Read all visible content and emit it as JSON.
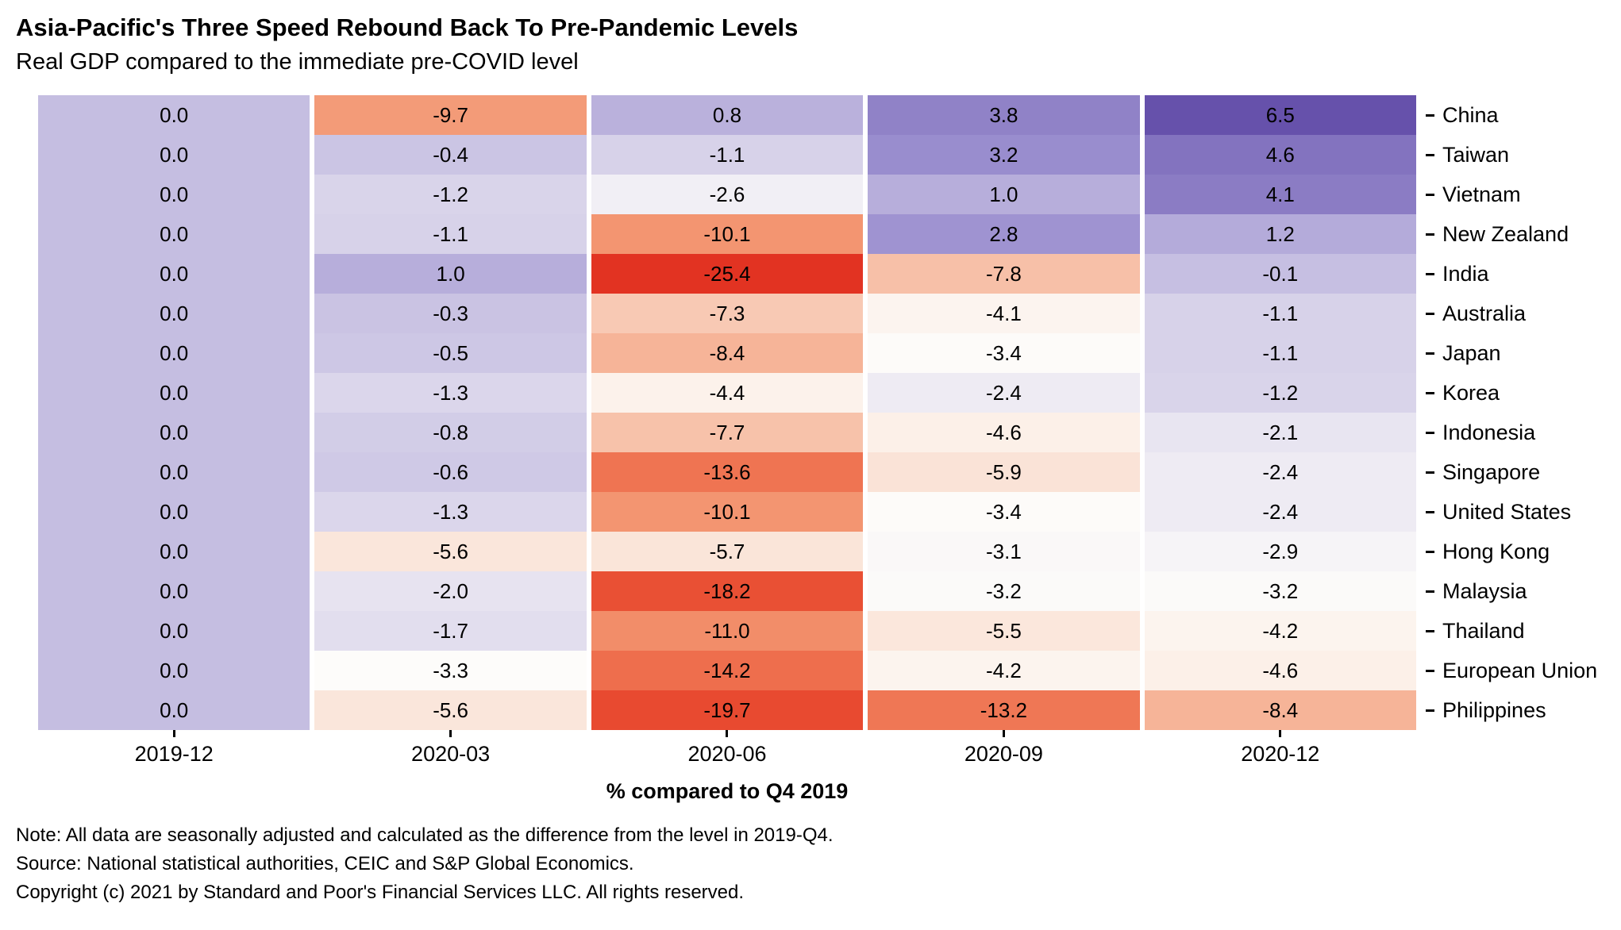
{
  "header": {
    "title": "Asia-Pacific's Three Speed Rebound Back To Pre-Pandemic Levels",
    "subtitle": "Real GDP compared to the immediate pre-COVID level"
  },
  "chart_data": {
    "type": "heatmap",
    "x_categories": [
      "2019-12",
      "2020-03",
      "2020-06",
      "2020-09",
      "2020-12"
    ],
    "xlabel": "% compared to Q4 2019",
    "rows": [
      {
        "label": "China",
        "values": [
          0.0,
          -9.7,
          0.8,
          3.8,
          6.5
        ]
      },
      {
        "label": "Taiwan",
        "values": [
          0.0,
          -0.4,
          -1.1,
          3.2,
          4.6
        ]
      },
      {
        "label": "Vietnam",
        "values": [
          0.0,
          -1.2,
          -2.6,
          1.0,
          4.1
        ]
      },
      {
        "label": "New Zealand",
        "values": [
          0.0,
          -1.1,
          -10.1,
          2.8,
          1.2
        ]
      },
      {
        "label": "India",
        "values": [
          0.0,
          1.0,
          -25.4,
          -7.8,
          -0.1
        ]
      },
      {
        "label": "Australia",
        "values": [
          0.0,
          -0.3,
          -7.3,
          -4.1,
          -1.1
        ]
      },
      {
        "label": "Japan",
        "values": [
          0.0,
          -0.5,
          -8.4,
          -3.4,
          -1.1
        ]
      },
      {
        "label": "Korea",
        "values": [
          0.0,
          -1.3,
          -4.4,
          -2.4,
          -1.2
        ]
      },
      {
        "label": "Indonesia",
        "values": [
          0.0,
          -0.8,
          -7.7,
          -4.6,
          -2.1
        ]
      },
      {
        "label": "Singapore",
        "values": [
          0.0,
          -0.6,
          -13.6,
          -5.9,
          -2.4
        ]
      },
      {
        "label": "United States",
        "values": [
          0.0,
          -1.3,
          -10.1,
          -3.4,
          -2.4
        ]
      },
      {
        "label": "Hong Kong",
        "values": [
          0.0,
          -5.6,
          -5.7,
          -3.1,
          -2.9
        ]
      },
      {
        "label": "Malaysia",
        "values": [
          0.0,
          -2.0,
          -18.2,
          -3.2,
          -3.2
        ]
      },
      {
        "label": "Thailand",
        "values": [
          0.0,
          -1.7,
          -11.0,
          -5.5,
          -4.2
        ]
      },
      {
        "label": "European Union",
        "values": [
          0.0,
          -3.3,
          -14.2,
          -4.2,
          -4.6
        ]
      },
      {
        "label": "Philippines",
        "values": [
          0.0,
          -5.6,
          -19.7,
          -13.2,
          -8.4
        ]
      }
    ],
    "value_format": "one_decimal",
    "legend": "none",
    "grid": "off",
    "color_scale": {
      "min": -25.4,
      "mid": -3.3,
      "max": 6.5,
      "negative_stops": [
        [
          0.0,
          "#fdfcfa"
        ],
        [
          0.12,
          "#fae3d6"
        ],
        [
          0.3,
          "#f39772"
        ],
        [
          0.6,
          "#eb5738"
        ],
        [
          1.0,
          "#e23322"
        ]
      ],
      "positive_stops": [
        [
          0.0,
          "#fdfcfa"
        ],
        [
          0.34,
          "#c4bde1"
        ],
        [
          0.65,
          "#9b8fcf"
        ],
        [
          1.0,
          "#6651ab"
        ]
      ]
    }
  },
  "footnotes": [
    "Note: All data are seasonally adjusted and calculated as the difference from the level in 2019-Q4.",
    "Source: National statistical authorities, CEIC and S&P Global Economics.",
    "Copyright (c) 2021 by Standard and Poor's Financial Services LLC. All rights reserved."
  ]
}
